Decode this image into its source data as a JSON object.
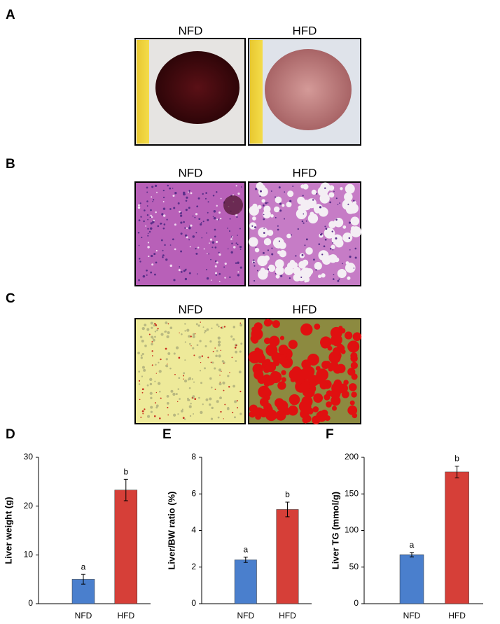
{
  "panels": [
    {
      "letter": "A",
      "labels": [
        "NFD",
        "HFD"
      ]
    },
    {
      "letter": "B",
      "labels": [
        "NFD",
        "HFD"
      ]
    },
    {
      "letter": "C",
      "labels": [
        "NFD",
        "HFD"
      ]
    }
  ],
  "chart_data": [
    {
      "type": "bar",
      "letter": "D",
      "y_label": "Liver weight (g)",
      "categories": [
        "NFD",
        "HFD"
      ],
      "values": [
        5,
        23.3
      ],
      "errors": [
        1,
        2.2
      ],
      "annotations": [
        "a",
        "b"
      ],
      "colors": [
        "#4a7fcd",
        "#d63f38"
      ],
      "ylim": [
        0,
        30
      ],
      "yticks": [
        0,
        10,
        20,
        30
      ]
    },
    {
      "type": "bar",
      "letter": "E",
      "y_label": "Liver/BW ratio (%)",
      "categories": [
        "NFD",
        "HFD"
      ],
      "values": [
        2.4,
        5.15
      ],
      "errors": [
        0.15,
        0.4
      ],
      "annotations": [
        "a",
        "b"
      ],
      "colors": [
        "#4a7fcd",
        "#d63f38"
      ],
      "ylim": [
        0,
        8
      ],
      "yticks": [
        0,
        2,
        4,
        6,
        8
      ]
    },
    {
      "type": "bar",
      "letter": "F",
      "y_label": "Liver TG (mmol/g)",
      "categories": [
        "NFD",
        "HFD"
      ],
      "values": [
        67,
        180
      ],
      "errors": [
        3,
        8
      ],
      "annotations": [
        "a",
        "b"
      ],
      "colors": [
        "#4a7fcd",
        "#d63f38"
      ],
      "ylim": [
        0,
        200
      ],
      "yticks": [
        0,
        50,
        100,
        150,
        200
      ]
    }
  ]
}
